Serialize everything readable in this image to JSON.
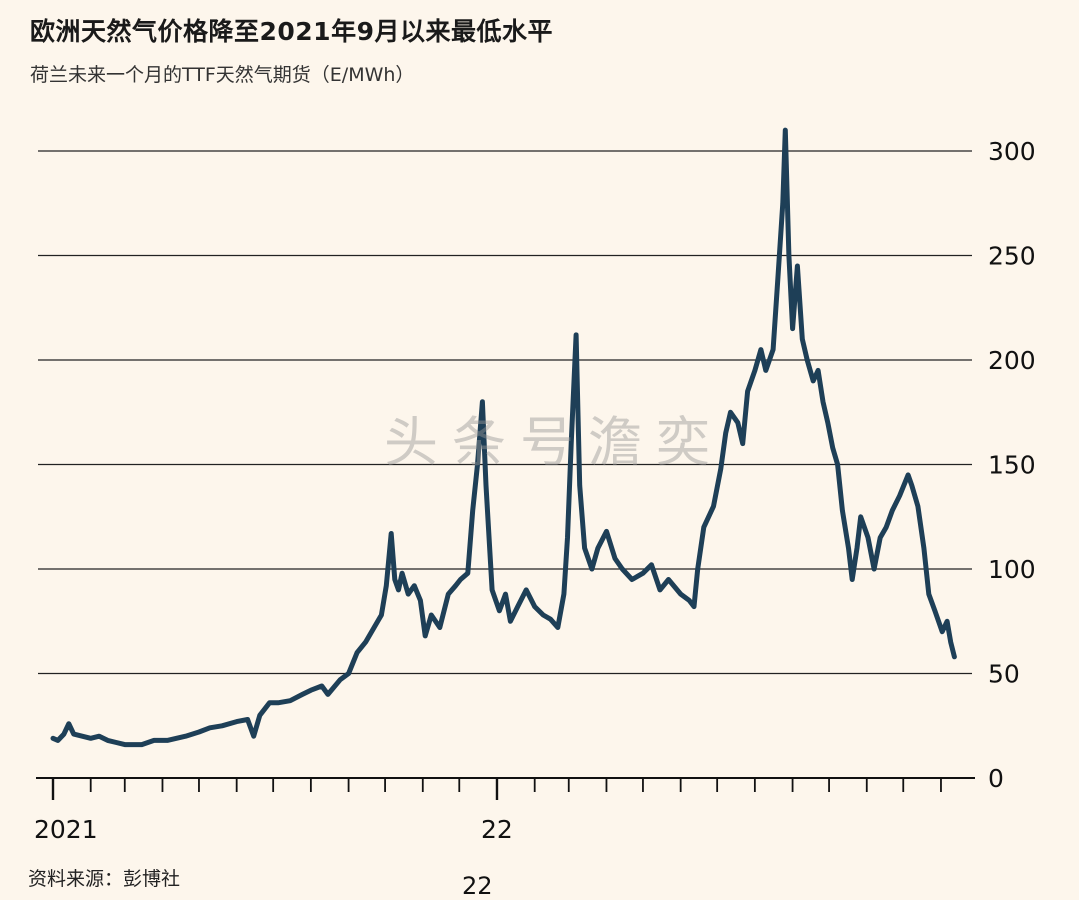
{
  "title": "欧洲天然气价格降至2021年9月以来最低水平",
  "subtitle": "荷兰未来一个月的TTF天然气期货（E/MWh）",
  "source": "资料来源：彭博社",
  "watermark": "头条号澹奕",
  "crop_label": "22",
  "chart_data": {
    "type": "line",
    "title": "欧洲天然气价格降至2021年9月以来最低水平",
    "ylabel": "荷兰未来一个月的TTF天然气期货（E/MWh）",
    "ylim": [
      0,
      320
    ],
    "yticks": [
      0,
      50,
      100,
      150,
      200,
      250,
      300
    ],
    "ytick_labels": [
      "0",
      "50",
      "100",
      "150",
      "200",
      "250",
      "300"
    ],
    "xlim": [
      "2021-01-01",
      "2023-01-15"
    ],
    "x_tick_labels": [
      {
        "date": "2021-01-01",
        "label": "2021"
      },
      {
        "date": "2022-01-01",
        "label": "22"
      }
    ],
    "x_month_ticks": [
      "2021-01-01",
      "2021-02-01",
      "2021-03-01",
      "2021-04-01",
      "2021-05-01",
      "2021-06-01",
      "2021-07-01",
      "2021-08-01",
      "2021-09-01",
      "2021-10-01",
      "2021-11-01",
      "2021-12-01",
      "2022-01-01",
      "2022-02-01",
      "2022-03-01",
      "2022-04-01",
      "2022-05-01",
      "2022-06-01",
      "2022-07-01",
      "2022-08-01",
      "2022-09-01",
      "2022-10-01",
      "2022-11-01",
      "2022-12-01",
      "2023-01-01"
    ],
    "grid": "horizontal",
    "series": [
      {
        "color": "#1e3f57",
        "points": [
          [
            "2021-01-01",
            19
          ],
          [
            "2021-01-05",
            18
          ],
          [
            "2021-01-10",
            21
          ],
          [
            "2021-01-14",
            26
          ],
          [
            "2021-01-18",
            21
          ],
          [
            "2021-01-25",
            20
          ],
          [
            "2021-02-01",
            19
          ],
          [
            "2021-02-08",
            20
          ],
          [
            "2021-02-15",
            18
          ],
          [
            "2021-02-22",
            17
          ],
          [
            "2021-03-01",
            16
          ],
          [
            "2021-03-15",
            16
          ],
          [
            "2021-03-25",
            18
          ],
          [
            "2021-04-05",
            18
          ],
          [
            "2021-04-20",
            20
          ],
          [
            "2021-05-01",
            22
          ],
          [
            "2021-05-10",
            24
          ],
          [
            "2021-05-20",
            25
          ],
          [
            "2021-06-01",
            27
          ],
          [
            "2021-06-10",
            28
          ],
          [
            "2021-06-15",
            20
          ],
          [
            "2021-06-20",
            30
          ],
          [
            "2021-06-28",
            36
          ],
          [
            "2021-07-05",
            36
          ],
          [
            "2021-07-15",
            37
          ],
          [
            "2021-07-25",
            40
          ],
          [
            "2021-08-01",
            42
          ],
          [
            "2021-08-10",
            44
          ],
          [
            "2021-08-15",
            40
          ],
          [
            "2021-08-25",
            47
          ],
          [
            "2021-09-01",
            50
          ],
          [
            "2021-09-08",
            60
          ],
          [
            "2021-09-15",
            65
          ],
          [
            "2021-09-22",
            72
          ],
          [
            "2021-09-28",
            78
          ],
          [
            "2021-10-02",
            92
          ],
          [
            "2021-10-06",
            117
          ],
          [
            "2021-10-09",
            95
          ],
          [
            "2021-10-12",
            90
          ],
          [
            "2021-10-15",
            98
          ],
          [
            "2021-10-20",
            88
          ],
          [
            "2021-10-25",
            92
          ],
          [
            "2021-10-30",
            85
          ],
          [
            "2021-11-03",
            68
          ],
          [
            "2021-11-08",
            78
          ],
          [
            "2021-11-15",
            72
          ],
          [
            "2021-11-22",
            88
          ],
          [
            "2021-11-28",
            92
          ],
          [
            "2021-12-02",
            95
          ],
          [
            "2021-12-08",
            98
          ],
          [
            "2021-12-12",
            128
          ],
          [
            "2021-12-16",
            150
          ],
          [
            "2021-12-20",
            180
          ],
          [
            "2021-12-23",
            140
          ],
          [
            "2021-12-28",
            90
          ],
          [
            "2022-01-03",
            80
          ],
          [
            "2022-01-08",
            88
          ],
          [
            "2022-01-12",
            75
          ],
          [
            "2022-01-18",
            82
          ],
          [
            "2022-01-25",
            90
          ],
          [
            "2022-02-01",
            82
          ],
          [
            "2022-02-08",
            78
          ],
          [
            "2022-02-14",
            76
          ],
          [
            "2022-02-20",
            72
          ],
          [
            "2022-02-25",
            88
          ],
          [
            "2022-02-28",
            115
          ],
          [
            "2022-03-03",
            160
          ],
          [
            "2022-03-07",
            212
          ],
          [
            "2022-03-10",
            140
          ],
          [
            "2022-03-14",
            110
          ],
          [
            "2022-03-20",
            100
          ],
          [
            "2022-03-25",
            110
          ],
          [
            "2022-04-01",
            118
          ],
          [
            "2022-04-08",
            105
          ],
          [
            "2022-04-14",
            100
          ],
          [
            "2022-04-22",
            95
          ],
          [
            "2022-05-01",
            98
          ],
          [
            "2022-05-08",
            102
          ],
          [
            "2022-05-15",
            90
          ],
          [
            "2022-05-22",
            95
          ],
          [
            "2022-06-01",
            88
          ],
          [
            "2022-06-08",
            85
          ],
          [
            "2022-06-12",
            82
          ],
          [
            "2022-06-15",
            100
          ],
          [
            "2022-06-20",
            120
          ],
          [
            "2022-06-28",
            130
          ],
          [
            "2022-07-04",
            148
          ],
          [
            "2022-07-08",
            165
          ],
          [
            "2022-07-12",
            175
          ],
          [
            "2022-07-18",
            170
          ],
          [
            "2022-07-22",
            160
          ],
          [
            "2022-07-26",
            185
          ],
          [
            "2022-08-01",
            195
          ],
          [
            "2022-08-06",
            205
          ],
          [
            "2022-08-10",
            195
          ],
          [
            "2022-08-16",
            205
          ],
          [
            "2022-08-20",
            240
          ],
          [
            "2022-08-24",
            275
          ],
          [
            "2022-08-26",
            310
          ],
          [
            "2022-08-29",
            250
          ],
          [
            "2022-09-01",
            215
          ],
          [
            "2022-09-05",
            245
          ],
          [
            "2022-09-09",
            210
          ],
          [
            "2022-09-13",
            200
          ],
          [
            "2022-09-18",
            190
          ],
          [
            "2022-09-22",
            195
          ],
          [
            "2022-09-26",
            180
          ],
          [
            "2022-09-30",
            170
          ],
          [
            "2022-10-04",
            158
          ],
          [
            "2022-10-08",
            150
          ],
          [
            "2022-10-12",
            128
          ],
          [
            "2022-10-17",
            110
          ],
          [
            "2022-10-20",
            95
          ],
          [
            "2022-10-24",
            110
          ],
          [
            "2022-10-27",
            125
          ],
          [
            "2022-11-02",
            115
          ],
          [
            "2022-11-07",
            100
          ],
          [
            "2022-11-12",
            115
          ],
          [
            "2022-11-17",
            120
          ],
          [
            "2022-11-22",
            128
          ],
          [
            "2022-11-28",
            135
          ],
          [
            "2022-12-05",
            145
          ],
          [
            "2022-12-08",
            140
          ],
          [
            "2022-12-13",
            130
          ],
          [
            "2022-12-18",
            110
          ],
          [
            "2022-12-22",
            88
          ],
          [
            "2022-12-27",
            80
          ],
          [
            "2023-01-02",
            70
          ],
          [
            "2023-01-06",
            75
          ],
          [
            "2023-01-09",
            65
          ],
          [
            "2023-01-12",
            58
          ]
        ]
      }
    ]
  }
}
